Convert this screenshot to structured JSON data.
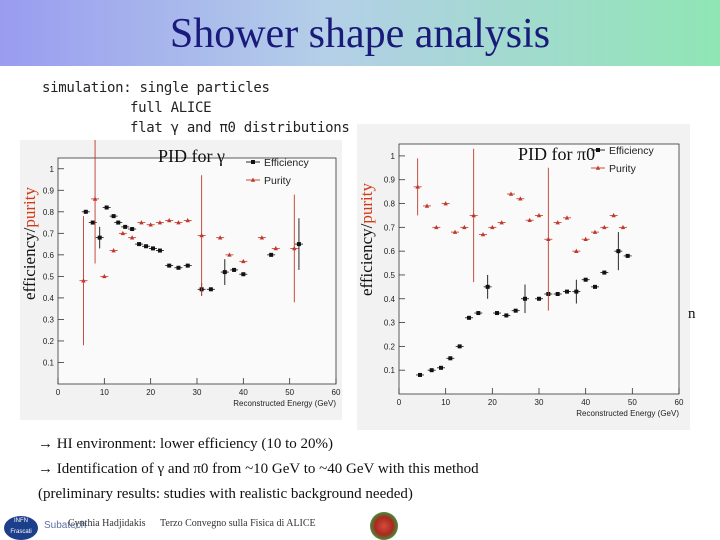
{
  "slide": {
    "title": "Shower shape analysis",
    "sim_lines": [
      "simulation: single particles",
      "full ALICE",
      "flat γ and π0 distributions"
    ],
    "stray_char": "n",
    "bullets": [
      "→ HI environment: lower efficiency (10 to 20%)",
      "→ Identification of γ and π0 from ~10 GeV to ~40 GeV with this method",
      "(preliminary results: studies with realistic background needed)"
    ],
    "footer": {
      "author": "Cynthia Hadjidakis",
      "event": "Terzo Convegno sulla Fisica di ALICE",
      "logo_text": "INFN Frascati",
      "logo2_text": "Subatech"
    }
  },
  "chart_data": [
    {
      "type": "scatter",
      "title": "PID for γ",
      "ylabel_parts": [
        "efficiency/",
        "purity"
      ],
      "xlabel": "Reconstructed Energy (GeV)",
      "xlim": [
        0,
        60
      ],
      "ylim": [
        0,
        1.05
      ],
      "xticks": [
        0,
        10,
        20,
        30,
        40,
        50,
        60
      ],
      "yticks": [
        0.1,
        0.2,
        0.3,
        0.4,
        0.5,
        0.6,
        0.7,
        0.8,
        0.9,
        1
      ],
      "legend": "top-right",
      "colors": {
        "Efficiency": "#111111",
        "Purity": "#c0392b"
      },
      "series": [
        {
          "name": "Efficiency",
          "points": [
            {
              "x": 6,
              "y": 0.8
            },
            {
              "x": 7.5,
              "y": 0.75
            },
            {
              "x": 9,
              "y": 0.68,
              "err": 0.05
            },
            {
              "x": 10.5,
              "y": 0.82
            },
            {
              "x": 12,
              "y": 0.78
            },
            {
              "x": 13,
              "y": 0.75
            },
            {
              "x": 14.5,
              "y": 0.73
            },
            {
              "x": 16,
              "y": 0.72
            },
            {
              "x": 17.5,
              "y": 0.65
            },
            {
              "x": 19,
              "y": 0.64
            },
            {
              "x": 20.5,
              "y": 0.63
            },
            {
              "x": 22,
              "y": 0.62
            },
            {
              "x": 24,
              "y": 0.55
            },
            {
              "x": 26,
              "y": 0.54
            },
            {
              "x": 28,
              "y": 0.55
            },
            {
              "x": 31,
              "y": 0.44,
              "err": 0.03
            },
            {
              "x": 33,
              "y": 0.44
            },
            {
              "x": 36,
              "y": 0.52,
              "err": 0.06
            },
            {
              "x": 38,
              "y": 0.53
            },
            {
              "x": 40,
              "y": 0.51
            },
            {
              "x": 46,
              "y": 0.6
            },
            {
              "x": 52,
              "y": 0.65,
              "err": 0.12
            }
          ]
        },
        {
          "name": "Purity",
          "points": [
            {
              "x": 5.5,
              "y": 0.48,
              "err": 0.3
            },
            {
              "x": 8,
              "y": 0.86,
              "err": 0.3
            },
            {
              "x": 10,
              "y": 0.5
            },
            {
              "x": 12,
              "y": 0.62
            },
            {
              "x": 14,
              "y": 0.7
            },
            {
              "x": 16,
              "y": 0.68
            },
            {
              "x": 18,
              "y": 0.75
            },
            {
              "x": 20,
              "y": 0.74
            },
            {
              "x": 22,
              "y": 0.75
            },
            {
              "x": 24,
              "y": 0.76
            },
            {
              "x": 26,
              "y": 0.75
            },
            {
              "x": 28,
              "y": 0.76
            },
            {
              "x": 31,
              "y": 0.69,
              "err": 0.28
            },
            {
              "x": 35,
              "y": 0.68
            },
            {
              "x": 37,
              "y": 0.6
            },
            {
              "x": 40,
              "y": 0.57
            },
            {
              "x": 44,
              "y": 0.68
            },
            {
              "x": 47,
              "y": 0.63
            },
            {
              "x": 51,
              "y": 0.63,
              "err": 0.25
            }
          ]
        }
      ]
    },
    {
      "type": "scatter",
      "title": "PID for π0",
      "ylabel_parts": [
        "efficiency/",
        "purity"
      ],
      "xlabel": "Reconstructed Energy (GeV)",
      "xlim": [
        0,
        60
      ],
      "ylim": [
        0,
        1.05
      ],
      "xticks": [
        0,
        10,
        20,
        30,
        40,
        50,
        60
      ],
      "yticks": [
        0.1,
        0.2,
        0.3,
        0.4,
        0.5,
        0.6,
        0.7,
        0.8,
        0.9,
        1
      ],
      "legend": "top-right",
      "colors": {
        "Efficiency": "#111111",
        "Purity": "#c0392b"
      },
      "series": [
        {
          "name": "Efficiency",
          "points": [
            {
              "x": 4.5,
              "y": 0.08
            },
            {
              "x": 7,
              "y": 0.1
            },
            {
              "x": 9,
              "y": 0.11
            },
            {
              "x": 11,
              "y": 0.15
            },
            {
              "x": 13,
              "y": 0.2
            },
            {
              "x": 15,
              "y": 0.32
            },
            {
              "x": 17,
              "y": 0.34
            },
            {
              "x": 19,
              "y": 0.45,
              "err": 0.05
            },
            {
              "x": 21,
              "y": 0.34
            },
            {
              "x": 23,
              "y": 0.33
            },
            {
              "x": 25,
              "y": 0.35
            },
            {
              "x": 27,
              "y": 0.4,
              "err": 0.06
            },
            {
              "x": 30,
              "y": 0.4
            },
            {
              "x": 32,
              "y": 0.42
            },
            {
              "x": 34,
              "y": 0.42
            },
            {
              "x": 36,
              "y": 0.43
            },
            {
              "x": 38,
              "y": 0.43,
              "err": 0.05
            },
            {
              "x": 40,
              "y": 0.48
            },
            {
              "x": 42,
              "y": 0.45
            },
            {
              "x": 44,
              "y": 0.51
            },
            {
              "x": 47,
              "y": 0.6,
              "err": 0.08
            },
            {
              "x": 49,
              "y": 0.58
            }
          ]
        },
        {
          "name": "Purity",
          "points": [
            {
              "x": 4,
              "y": 0.87,
              "err": 0.12
            },
            {
              "x": 6,
              "y": 0.79
            },
            {
              "x": 8,
              "y": 0.7
            },
            {
              "x": 10,
              "y": 0.8
            },
            {
              "x": 12,
              "y": 0.68
            },
            {
              "x": 14,
              "y": 0.7
            },
            {
              "x": 16,
              "y": 0.75,
              "err": 0.28
            },
            {
              "x": 18,
              "y": 0.67
            },
            {
              "x": 20,
              "y": 0.7
            },
            {
              "x": 22,
              "y": 0.72
            },
            {
              "x": 24,
              "y": 0.84
            },
            {
              "x": 26,
              "y": 0.82
            },
            {
              "x": 28,
              "y": 0.73
            },
            {
              "x": 30,
              "y": 0.75
            },
            {
              "x": 32,
              "y": 0.65,
              "err": 0.3
            },
            {
              "x": 34,
              "y": 0.72
            },
            {
              "x": 36,
              "y": 0.74
            },
            {
              "x": 38,
              "y": 0.6
            },
            {
              "x": 40,
              "y": 0.65
            },
            {
              "x": 42,
              "y": 0.68
            },
            {
              "x": 44,
              "y": 0.7
            },
            {
              "x": 46,
              "y": 0.75
            },
            {
              "x": 48,
              "y": 0.7
            }
          ]
        }
      ]
    }
  ]
}
